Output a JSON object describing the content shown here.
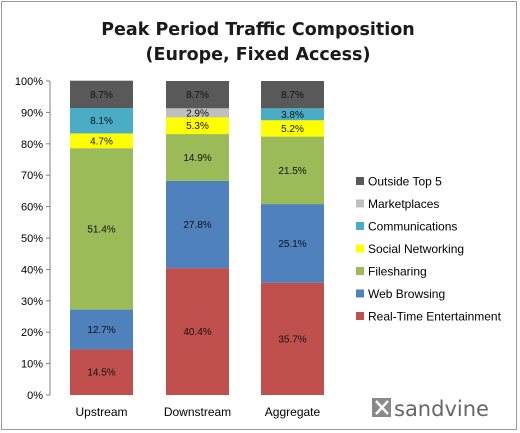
{
  "chart_data": {
    "type": "bar",
    "stacked": true,
    "title": "Peak Period Traffic Composition",
    "subtitle": "(Europe, Fixed Access)",
    "categories": [
      "Upstream",
      "Downstream",
      "Aggregate"
    ],
    "ylim": [
      0,
      100
    ],
    "yticks": [
      "0%",
      "10%",
      "20%",
      "30%",
      "40%",
      "50%",
      "60%",
      "70%",
      "80%",
      "90%",
      "100%"
    ],
    "grid": false,
    "legend_position": "right",
    "series": [
      {
        "name": "Real-Time Entertainment",
        "color": "#c0504d",
        "values": [
          14.5,
          40.4,
          35.7
        ],
        "labels": [
          "14.5%",
          "40.4%",
          "35.7%"
        ]
      },
      {
        "name": "Web Browsing",
        "color": "#4f81bd",
        "values": [
          12.7,
          27.8,
          25.1
        ],
        "labels": [
          "12.7%",
          "27.8%",
          "25.1%"
        ]
      },
      {
        "name": "Filesharing",
        "color": "#9bbb59",
        "values": [
          51.4,
          14.9,
          21.5
        ],
        "labels": [
          "51.4%",
          "14.9%",
          "21.5%"
        ]
      },
      {
        "name": "Social Networking",
        "color": "#ffff00",
        "values": [
          4.7,
          5.3,
          5.2
        ],
        "labels": [
          "4.7%",
          "5.3%",
          "5.2%"
        ]
      },
      {
        "name": "Communications",
        "color": "#4bacc6",
        "values": [
          8.1,
          0,
          3.8
        ],
        "labels": [
          "8.1%",
          "",
          "3.8%"
        ]
      },
      {
        "name": "Marketplaces",
        "color": "#bfbfbf",
        "values": [
          0,
          2.9,
          0
        ],
        "labels": [
          "",
          "2.9%",
          ""
        ]
      },
      {
        "name": "Outside Top 5",
        "color": "#595959",
        "values": [
          8.7,
          8.7,
          8.7
        ],
        "labels": [
          "8.7%",
          "8.7%",
          "8.7%"
        ]
      }
    ]
  },
  "brand": {
    "name": "sandvine",
    "icon": "sandvine-logo-icon"
  }
}
